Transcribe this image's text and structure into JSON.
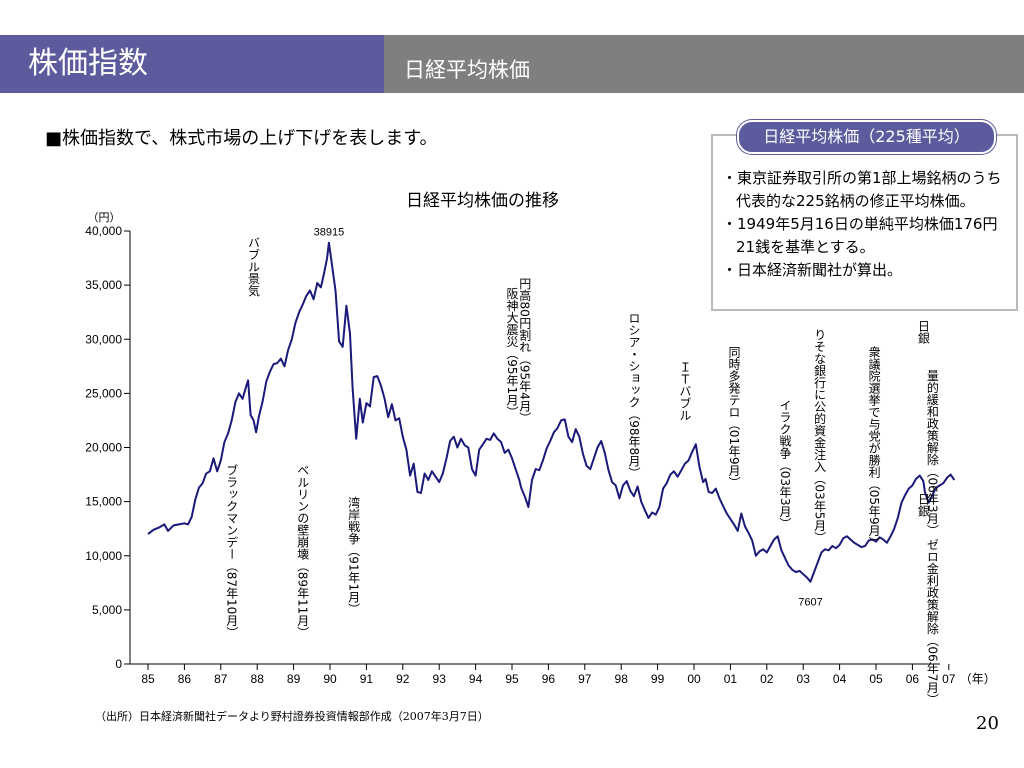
{
  "header": {
    "title": "株価指数",
    "subtitle": "日経平均株価",
    "left_color": "#5b5b9e",
    "right_color": "#7f7f7f"
  },
  "headline": "■株価指数で、株式市場の上げ下げを表します。",
  "info": {
    "title": "日経平均株価（225種平均）",
    "items": [
      "東京証券取引所の第1部上場銘柄のうち代表的な225銘柄の修正平均株価。",
      "1949年5月16日の単純平均株価176円21銭を基準とする。",
      "日本経済新聞社が算出。"
    ]
  },
  "footer": {
    "source": "（出所）日本経済新聞社データより野村證券投資情報部作成（2007年3月7日）",
    "page": "20"
  },
  "chart_data": {
    "type": "line",
    "title": "日経平均株価の推移",
    "ylabel": "（円）",
    "xlabel": "（年）",
    "line_color": "#1a1a7a",
    "ylim": [
      0,
      40000
    ],
    "xlim": [
      1985,
      2007.2
    ],
    "y_ticks": [
      0,
      5000,
      10000,
      15000,
      20000,
      25000,
      30000,
      35000,
      40000
    ],
    "y_tick_labels": [
      "0",
      "5,000",
      "10,000",
      "15,000",
      "20,000",
      "25,000",
      "30,000",
      "35,000",
      "40,000"
    ],
    "x_ticks": [
      1985,
      1986,
      1987,
      1988,
      1989,
      1990,
      1991,
      1992,
      1993,
      1994,
      1995,
      1996,
      1997,
      1998,
      1999,
      2000,
      2001,
      2002,
      2003,
      2004,
      2005,
      2006,
      2007
    ],
    "x_tick_labels": [
      "85",
      "86",
      "87",
      "88",
      "89",
      "90",
      "91",
      "92",
      "93",
      "94",
      "95",
      "96",
      "97",
      "98",
      "99",
      "00",
      "01",
      "02",
      "03",
      "04",
      "05",
      "06",
      "07"
    ],
    "series": [
      {
        "points": [
          [
            1985.0,
            12000
          ],
          [
            1985.15,
            12400
          ],
          [
            1985.3,
            12600
          ],
          [
            1985.45,
            12900
          ],
          [
            1985.55,
            12300
          ],
          [
            1985.7,
            12800
          ],
          [
            1985.85,
            12900
          ],
          [
            1986.0,
            13000
          ],
          [
            1986.1,
            12900
          ],
          [
            1986.2,
            13600
          ],
          [
            1986.3,
            15200
          ],
          [
            1986.4,
            16300
          ],
          [
            1986.5,
            16700
          ],
          [
            1986.6,
            17600
          ],
          [
            1986.7,
            17800
          ],
          [
            1986.8,
            19000
          ],
          [
            1986.9,
            17800
          ],
          [
            1987.0,
            18800
          ],
          [
            1987.1,
            20500
          ],
          [
            1987.2,
            21300
          ],
          [
            1987.3,
            22500
          ],
          [
            1987.4,
            24200
          ],
          [
            1987.5,
            25000
          ],
          [
            1987.6,
            24500
          ],
          [
            1987.7,
            25700
          ],
          [
            1987.75,
            26200
          ],
          [
            1987.82,
            23000
          ],
          [
            1987.9,
            22500
          ],
          [
            1987.97,
            21400
          ],
          [
            1988.05,
            22900
          ],
          [
            1988.15,
            24300
          ],
          [
            1988.25,
            26100
          ],
          [
            1988.35,
            27000
          ],
          [
            1988.45,
            27700
          ],
          [
            1988.55,
            27800
          ],
          [
            1988.65,
            28200
          ],
          [
            1988.75,
            27500
          ],
          [
            1988.85,
            29000
          ],
          [
            1988.95,
            30000
          ],
          [
            1989.05,
            31500
          ],
          [
            1989.15,
            32500
          ],
          [
            1989.25,
            33200
          ],
          [
            1989.35,
            34000
          ],
          [
            1989.45,
            34500
          ],
          [
            1989.55,
            33700
          ],
          [
            1989.65,
            35200
          ],
          [
            1989.75,
            34800
          ],
          [
            1989.85,
            36300
          ],
          [
            1989.92,
            37500
          ],
          [
            1989.97,
            38915
          ],
          [
            1990.05,
            37000
          ],
          [
            1990.15,
            34500
          ],
          [
            1990.25,
            29800
          ],
          [
            1990.35,
            29300
          ],
          [
            1990.45,
            33100
          ],
          [
            1990.55,
            30500
          ],
          [
            1990.62,
            25500
          ],
          [
            1990.72,
            20800
          ],
          [
            1990.82,
            24500
          ],
          [
            1990.9,
            22300
          ],
          [
            1991.0,
            24100
          ],
          [
            1991.1,
            23800
          ],
          [
            1991.2,
            26500
          ],
          [
            1991.3,
            26600
          ],
          [
            1991.4,
            25700
          ],
          [
            1991.5,
            24500
          ],
          [
            1991.6,
            22800
          ],
          [
            1991.7,
            24000
          ],
          [
            1991.8,
            22500
          ],
          [
            1991.9,
            22700
          ],
          [
            1992.0,
            21000
          ],
          [
            1992.1,
            19800
          ],
          [
            1992.2,
            17400
          ],
          [
            1992.3,
            18500
          ],
          [
            1992.4,
            15900
          ],
          [
            1992.5,
            15800
          ],
          [
            1992.6,
            17600
          ],
          [
            1992.7,
            17000
          ],
          [
            1992.8,
            17800
          ],
          [
            1992.9,
            17300
          ],
          [
            1993.0,
            16800
          ],
          [
            1993.1,
            17600
          ],
          [
            1993.2,
            19000
          ],
          [
            1993.3,
            20600
          ],
          [
            1993.4,
            21000
          ],
          [
            1993.5,
            20000
          ],
          [
            1993.6,
            20800
          ],
          [
            1993.7,
            20200
          ],
          [
            1993.8,
            20000
          ],
          [
            1993.9,
            18000
          ],
          [
            1994.0,
            17400
          ],
          [
            1994.1,
            19800
          ],
          [
            1994.2,
            20300
          ],
          [
            1994.3,
            20800
          ],
          [
            1994.4,
            20700
          ],
          [
            1994.5,
            21300
          ],
          [
            1994.6,
            20800
          ],
          [
            1994.7,
            20500
          ],
          [
            1994.8,
            19500
          ],
          [
            1994.9,
            19800
          ],
          [
            1995.0,
            19000
          ],
          [
            1995.1,
            18000
          ],
          [
            1995.2,
            17000
          ],
          [
            1995.25,
            16300
          ],
          [
            1995.35,
            15500
          ],
          [
            1995.45,
            14500
          ],
          [
            1995.55,
            17000
          ],
          [
            1995.65,
            18000
          ],
          [
            1995.75,
            17900
          ],
          [
            1995.85,
            18800
          ],
          [
            1995.95,
            19900
          ],
          [
            1996.05,
            20600
          ],
          [
            1996.15,
            21400
          ],
          [
            1996.25,
            21800
          ],
          [
            1996.35,
            22500
          ],
          [
            1996.45,
            22600
          ],
          [
            1996.55,
            21000
          ],
          [
            1996.65,
            20500
          ],
          [
            1996.75,
            21700
          ],
          [
            1996.85,
            21000
          ],
          [
            1996.95,
            19400
          ],
          [
            1997.05,
            18300
          ],
          [
            1997.15,
            18000
          ],
          [
            1997.25,
            19000
          ],
          [
            1997.35,
            20000
          ],
          [
            1997.45,
            20600
          ],
          [
            1997.55,
            19500
          ],
          [
            1997.65,
            17900
          ],
          [
            1997.75,
            16800
          ],
          [
            1997.85,
            16500
          ],
          [
            1997.95,
            15300
          ],
          [
            1998.05,
            16500
          ],
          [
            1998.15,
            16900
          ],
          [
            1998.25,
            16000
          ],
          [
            1998.35,
            15500
          ],
          [
            1998.45,
            16400
          ],
          [
            1998.55,
            15000
          ],
          [
            1998.65,
            14200
          ],
          [
            1998.75,
            13500
          ],
          [
            1998.85,
            14000
          ],
          [
            1998.95,
            13800
          ],
          [
            1999.05,
            14500
          ],
          [
            1999.15,
            16200
          ],
          [
            1999.25,
            16700
          ],
          [
            1999.35,
            17500
          ],
          [
            1999.45,
            17800
          ],
          [
            1999.55,
            17300
          ],
          [
            1999.65,
            17900
          ],
          [
            1999.75,
            18500
          ],
          [
            1999.85,
            18800
          ],
          [
            1999.95,
            19600
          ],
          [
            2000.05,
            20300
          ],
          [
            2000.15,
            18200
          ],
          [
            2000.25,
            16800
          ],
          [
            2000.32,
            17100
          ],
          [
            2000.4,
            15900
          ],
          [
            2000.5,
            15800
          ],
          [
            2000.6,
            16200
          ],
          [
            2000.7,
            15300
          ],
          [
            2000.8,
            14600
          ],
          [
            2000.9,
            13900
          ],
          [
            2001.0,
            13400
          ],
          [
            2001.1,
            12900
          ],
          [
            2001.2,
            12300
          ],
          [
            2001.3,
            13900
          ],
          [
            2001.4,
            12700
          ],
          [
            2001.5,
            12100
          ],
          [
            2001.6,
            11400
          ],
          [
            2001.7,
            10000
          ],
          [
            2001.8,
            10400
          ],
          [
            2001.9,
            10600
          ],
          [
            2002.0,
            10300
          ],
          [
            2002.1,
            10900
          ],
          [
            2002.2,
            11500
          ],
          [
            2002.3,
            11800
          ],
          [
            2002.4,
            10500
          ],
          [
            2002.5,
            9800
          ],
          [
            2002.6,
            9100
          ],
          [
            2002.7,
            8700
          ],
          [
            2002.8,
            8500
          ],
          [
            2002.9,
            8600
          ],
          [
            2003.0,
            8300
          ],
          [
            2003.1,
            8000
          ],
          [
            2003.2,
            7607
          ],
          [
            2003.3,
            8500
          ],
          [
            2003.4,
            9400
          ],
          [
            2003.5,
            10300
          ],
          [
            2003.6,
            10600
          ],
          [
            2003.7,
            10500
          ],
          [
            2003.8,
            10900
          ],
          [
            2003.9,
            10700
          ],
          [
            2004.0,
            11000
          ],
          [
            2004.1,
            11600
          ],
          [
            2004.2,
            11800
          ],
          [
            2004.3,
            11500
          ],
          [
            2004.4,
            11200
          ],
          [
            2004.5,
            11000
          ],
          [
            2004.6,
            10800
          ],
          [
            2004.7,
            10900
          ],
          [
            2004.8,
            11400
          ],
          [
            2004.9,
            11500
          ],
          [
            2005.0,
            11300
          ],
          [
            2005.1,
            11700
          ],
          [
            2005.2,
            11500
          ],
          [
            2005.3,
            11200
          ],
          [
            2005.4,
            11800
          ],
          [
            2005.5,
            12500
          ],
          [
            2005.6,
            13500
          ],
          [
            2005.7,
            14900
          ],
          [
            2005.8,
            15600
          ],
          [
            2005.9,
            16200
          ],
          [
            2006.0,
            16500
          ],
          [
            2006.1,
            17100
          ],
          [
            2006.2,
            17400
          ],
          [
            2006.3,
            16900
          ],
          [
            2006.35,
            15800
          ],
          [
            2006.45,
            14900
          ],
          [
            2006.55,
            15600
          ],
          [
            2006.65,
            16300
          ],
          [
            2006.75,
            16500
          ],
          [
            2006.85,
            16700
          ],
          [
            2006.95,
            17200
          ],
          [
            2007.05,
            17500
          ],
          [
            2007.15,
            17000
          ]
        ]
      }
    ],
    "point_labels": [
      {
        "text": "38915",
        "x": 1989.97,
        "y": 38915,
        "pos": "above"
      },
      {
        "text": "7607",
        "x": 2003.2,
        "y": 7607,
        "pos": "below"
      }
    ],
    "annotations": [
      {
        "text": "ブラックマンデー（87年10月）",
        "x": 1987.3,
        "y": 18500
      },
      {
        "text": "バブル景気",
        "x": 1987.9,
        "y": 39500
      },
      {
        "text": "ベルリンの壁崩壊（89年11月）",
        "x": 1989.25,
        "y": 18500
      },
      {
        "text": "湾岸戦争（91年1月）",
        "x": 1990.65,
        "y": 15500
      },
      {
        "text": "阪神大震災（95年1月）",
        "x": 1995.0,
        "y": 34800
      },
      {
        "text": "円高80円割れ（95年4月）",
        "x": 1995.35,
        "y": 35700
      },
      {
        "text": "ロシア・ショック（98年8月）",
        "x": 1998.35,
        "y": 32500
      },
      {
        "text": "ＩＴバブル",
        "x": 1999.75,
        "y": 28000
      },
      {
        "text": "同時多発テロ（01年9月）",
        "x": 2001.1,
        "y": 29400
      },
      {
        "text": "イラク戦争（03年3月）",
        "x": 2002.5,
        "y": 24500
      },
      {
        "text": "りそな銀行に公的資金注入（03年5月）",
        "x": 2003.45,
        "y": 31000
      },
      {
        "text": "衆議院選挙で与党が勝利（05年9月）",
        "x": 2004.95,
        "y": 29400
      },
      {
        "text": "日銀",
        "x": 2006.3,
        "y": 31800
      },
      {
        "text": "量的緩和政策解除（06年3月）",
        "x": 2006.55,
        "y": 27200
      },
      {
        "text": "日銀",
        "x": 2006.3,
        "y": 15800
      },
      {
        "text": "ゼロ金利政策解除（06年7月）",
        "x": 2006.55,
        "y": 11600
      }
    ]
  }
}
